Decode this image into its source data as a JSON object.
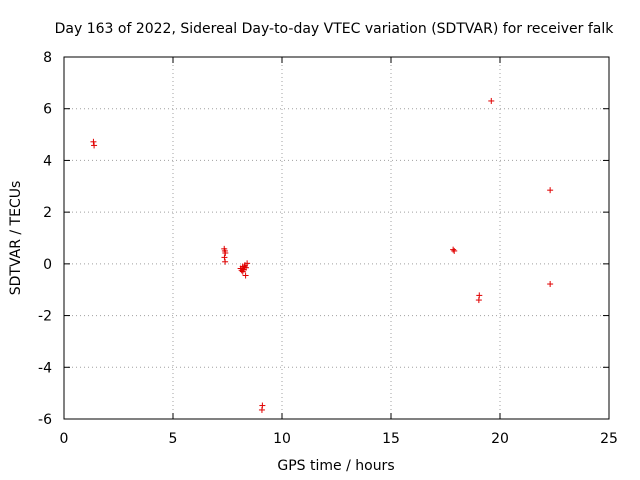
{
  "chart_data": {
    "type": "scatter",
    "title": "Day 163 of 2022, Sidereal Day-to-day VTEC variation (SDTVAR) for receiver falk",
    "xlabel": "GPS time / hours",
    "ylabel": "SDTVAR / TECUs",
    "xlim": [
      0,
      25
    ],
    "ylim": [
      -6,
      8
    ],
    "xticks": [
      0,
      5,
      10,
      15,
      20,
      25
    ],
    "yticks": [
      -6,
      -4,
      -2,
      0,
      2,
      4,
      6,
      8
    ],
    "grid": true,
    "marker": "plus",
    "color": "#e00000",
    "series": [
      {
        "name": "SDTVAR",
        "points": [
          [
            1.35,
            4.72
          ],
          [
            1.38,
            4.58
          ],
          [
            7.35,
            0.58
          ],
          [
            7.38,
            0.5
          ],
          [
            7.4,
            0.42
          ],
          [
            7.36,
            0.25
          ],
          [
            7.39,
            0.08
          ],
          [
            8.1,
            -0.18
          ],
          [
            8.15,
            -0.25
          ],
          [
            8.2,
            -0.1
          ],
          [
            8.25,
            -0.22
          ],
          [
            8.3,
            -0.05
          ],
          [
            8.35,
            -0.15
          ],
          [
            8.4,
            0.02
          ],
          [
            8.33,
            -0.45
          ],
          [
            8.2,
            -0.3
          ],
          [
            8.28,
            -0.12
          ],
          [
            9.1,
            -5.48
          ],
          [
            9.08,
            -5.65
          ],
          [
            17.85,
            0.55
          ],
          [
            17.9,
            0.5
          ],
          [
            19.05,
            -1.22
          ],
          [
            19.03,
            -1.4
          ],
          [
            19.6,
            6.3
          ],
          [
            22.3,
            2.85
          ],
          [
            22.3,
            -0.78
          ]
        ]
      }
    ]
  }
}
